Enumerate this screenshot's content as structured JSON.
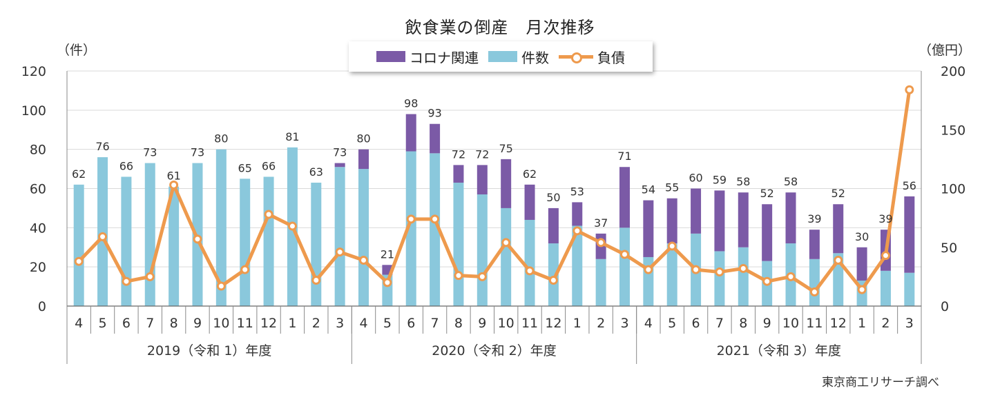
{
  "chart_data": {
    "type": "bar",
    "title": "飲食業の倒産　月次推移",
    "y_left_label": "（件）",
    "y_right_label": "（億円）",
    "ylim": [
      0,
      120
    ],
    "ylim_right": [
      0,
      200
    ],
    "yticks": [
      "0",
      "20",
      "40",
      "60",
      "80",
      "100",
      "120"
    ],
    "yticks_right": [
      "0",
      "50",
      "100",
      "150",
      "200"
    ],
    "categories": [
      "4",
      "5",
      "6",
      "7",
      "8",
      "9",
      "10",
      "11",
      "12",
      "1",
      "2",
      "3",
      "4",
      "5",
      "6",
      "7",
      "8",
      "9",
      "10",
      "11",
      "12",
      "1",
      "2",
      "3",
      "4",
      "5",
      "6",
      "7",
      "8",
      "9",
      "10",
      "11",
      "12",
      "1",
      "2",
      "3"
    ],
    "fiscal_years": [
      "2019（令和 1）年度",
      "2020（令和 2）年度",
      "2021（令和 3）年度"
    ],
    "totals": [
      62,
      76,
      66,
      73,
      61,
      73,
      80,
      65,
      66,
      81,
      63,
      73,
      80,
      21,
      98,
      93,
      72,
      72,
      75,
      62,
      50,
      53,
      37,
      71,
      54,
      55,
      60,
      59,
      58,
      52,
      58,
      39,
      52,
      30,
      39,
      56
    ],
    "series": [
      {
        "name": "コロナ関連",
        "type": "bar",
        "color": "#7b5aa6",
        "values": [
          0,
          0,
          0,
          0,
          0,
          0,
          0,
          0,
          0,
          0,
          0,
          2,
          10,
          5,
          19,
          15,
          9,
          15,
          25,
          18,
          18,
          12,
          13,
          31,
          29,
          23,
          23,
          31,
          28,
          29,
          26,
          15,
          25,
          17,
          21,
          39
        ]
      },
      {
        "name": "件数",
        "type": "bar",
        "color": "#8ac8dc",
        "values": [
          62,
          76,
          66,
          73,
          61,
          73,
          80,
          65,
          66,
          81,
          63,
          71,
          70,
          16,
          79,
          78,
          63,
          57,
          50,
          44,
          32,
          41,
          24,
          40,
          25,
          32,
          37,
          28,
          30,
          23,
          32,
          24,
          27,
          13,
          18,
          17
        ]
      },
      {
        "name": "負債",
        "type": "line",
        "axis": "right",
        "color": "#ee9a4d",
        "values": [
          38,
          59,
          21,
          25,
          103,
          57,
          17,
          31,
          78,
          68,
          22,
          46,
          39,
          20,
          74,
          74,
          26,
          25,
          54,
          30,
          22,
          64,
          54,
          44,
          31,
          51,
          31,
          29,
          32,
          21,
          25,
          12,
          39,
          14,
          43,
          184
        ]
      }
    ],
    "source": "東京商工リサーチ調べ"
  }
}
